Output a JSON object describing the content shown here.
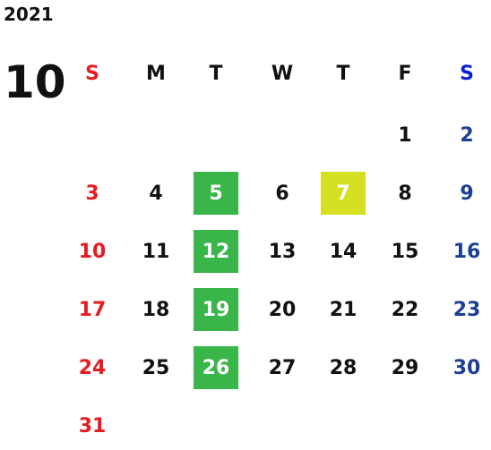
{
  "year": "2021",
  "month": "10",
  "weekdays": [
    {
      "label": "S",
      "color": "#e51c23"
    },
    {
      "label": "M",
      "color": "#111111"
    },
    {
      "label": "T",
      "color": "#111111"
    },
    {
      "label": "W",
      "color": "#111111"
    },
    {
      "label": "T",
      "color": "#111111"
    },
    {
      "label": "F",
      "color": "#111111"
    },
    {
      "label": "S",
      "color": "#0a1fd6"
    }
  ],
  "day_colors": [
    "#e51c23",
    "#111111",
    "#111111",
    "#111111",
    "#111111",
    "#111111",
    "#1c3f94"
  ],
  "highlight_text_color": "#ffffff",
  "weeks": [
    [
      null,
      null,
      null,
      null,
      null,
      {
        "day": "1"
      },
      {
        "day": "2"
      }
    ],
    [
      {
        "day": "3"
      },
      {
        "day": "4"
      },
      {
        "day": "5",
        "background": "#39b54a"
      },
      {
        "day": "6"
      },
      {
        "day": "7",
        "background": "#d4e021"
      },
      {
        "day": "8"
      },
      {
        "day": "9"
      }
    ],
    [
      {
        "day": "10"
      },
      {
        "day": "11"
      },
      {
        "day": "12",
        "background": "#39b54a"
      },
      {
        "day": "13"
      },
      {
        "day": "14"
      },
      {
        "day": "15"
      },
      {
        "day": "16"
      }
    ],
    [
      {
        "day": "17"
      },
      {
        "day": "18"
      },
      {
        "day": "19",
        "background": "#39b54a"
      },
      {
        "day": "20"
      },
      {
        "day": "21"
      },
      {
        "day": "22"
      },
      {
        "day": "23"
      }
    ],
    [
      {
        "day": "24"
      },
      {
        "day": "25"
      },
      {
        "day": "26",
        "background": "#39b54a"
      },
      {
        "day": "27"
      },
      {
        "day": "28"
      },
      {
        "day": "29"
      },
      {
        "day": "30"
      }
    ],
    [
      {
        "day": "31"
      },
      null,
      null,
      null,
      null,
      null,
      null
    ]
  ]
}
